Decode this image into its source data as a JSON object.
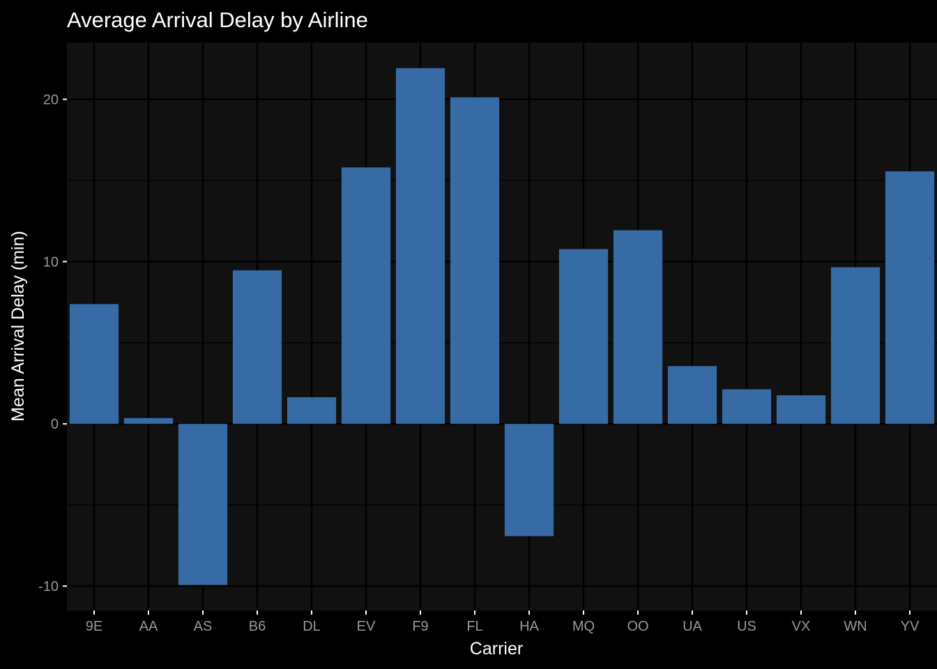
{
  "chart_data": {
    "type": "bar",
    "title": "Average Arrival Delay by Airline",
    "xlabel": "Carrier",
    "ylabel": "Mean Arrival Delay (min)",
    "categories": [
      "9E",
      "AA",
      "AS",
      "B6",
      "DL",
      "EV",
      "F9",
      "FL",
      "HA",
      "MQ",
      "OO",
      "UA",
      "US",
      "VX",
      "WN",
      "YV"
    ],
    "values": [
      7.38,
      0.36,
      -9.93,
      9.46,
      1.64,
      15.8,
      21.92,
      20.12,
      -6.92,
      10.77,
      11.93,
      3.56,
      2.13,
      1.76,
      9.65,
      15.56
    ],
    "ylim": [
      -11.5,
      23.5
    ],
    "yticks": [
      -10,
      0,
      10,
      20
    ],
    "grid": true,
    "legend": "none",
    "colors": {
      "bar": "#376ba5",
      "panel": "#111111",
      "background": "#000000",
      "grid": "#000000",
      "title_text": "#ffffff",
      "tick_text": "#999999"
    }
  }
}
